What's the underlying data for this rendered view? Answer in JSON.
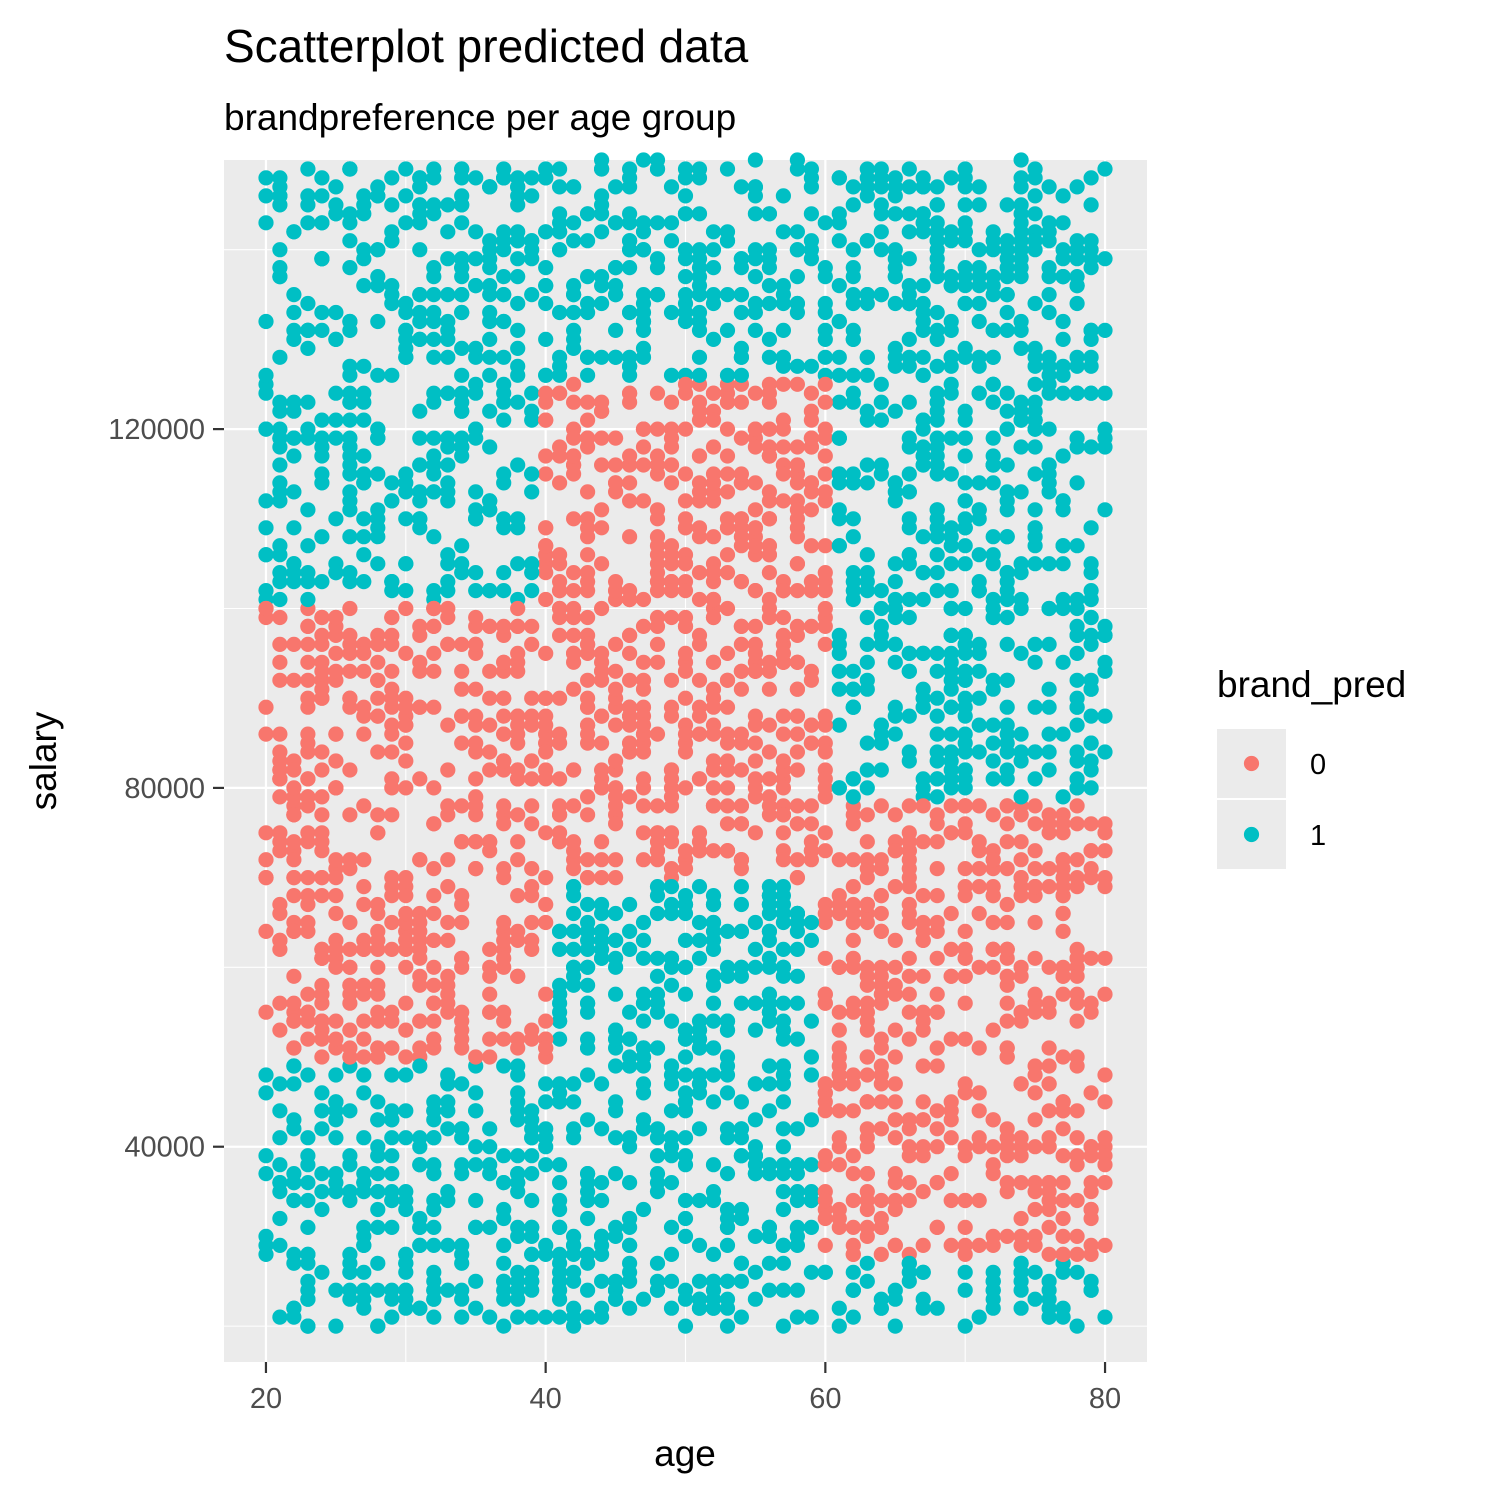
{
  "chart_data": {
    "type": "scatter",
    "title": "Scatterplot predicted data",
    "subtitle": "brandpreference per age group",
    "xlabel": "age",
    "ylabel": "salary",
    "xlim": [
      17,
      83
    ],
    "ylim": [
      16000,
      150000
    ],
    "xticks": [
      20,
      40,
      60,
      80
    ],
    "yticks": [
      40000,
      80000,
      120000
    ],
    "xtick_labels": [
      "20",
      "40",
      "60",
      "80"
    ],
    "ytick_labels": [
      "40000",
      "80000",
      "120000"
    ],
    "grid": true,
    "legend": {
      "title": "brand_pred",
      "position": "right"
    },
    "series": [
      {
        "name": "0",
        "color": "#F8766D",
        "regions": [
          {
            "age": [
              20,
              40
            ],
            "salary": [
              50000,
              100000
            ]
          },
          {
            "age": [
              40,
              60
            ],
            "salary": [
              70000,
              125000
            ]
          },
          {
            "age": [
              60,
              80
            ],
            "salary": [
              28000,
              78000
            ]
          }
        ]
      },
      {
        "name": "1",
        "color": "#00BFC4",
        "regions": [
          {
            "age": [
              20,
              40
            ],
            "salary": [
              20000,
              50000
            ]
          },
          {
            "age": [
              20,
              40
            ],
            "salary": [
              100000,
              150000
            ]
          },
          {
            "age": [
              40,
              60
            ],
            "salary": [
              20000,
              70000
            ]
          },
          {
            "age": [
              40,
              60
            ],
            "salary": [
              125000,
              150000
            ]
          },
          {
            "age": [
              60,
              80
            ],
            "salary": [
              78000,
              150000
            ]
          },
          {
            "age": [
              60,
              80
            ],
            "salary": [
              20000,
              28000
            ]
          }
        ]
      }
    ],
    "colors": {
      "panel": "#EBEBEB",
      "grid": "#FFFFFF",
      "tick": "#333333"
    }
  }
}
